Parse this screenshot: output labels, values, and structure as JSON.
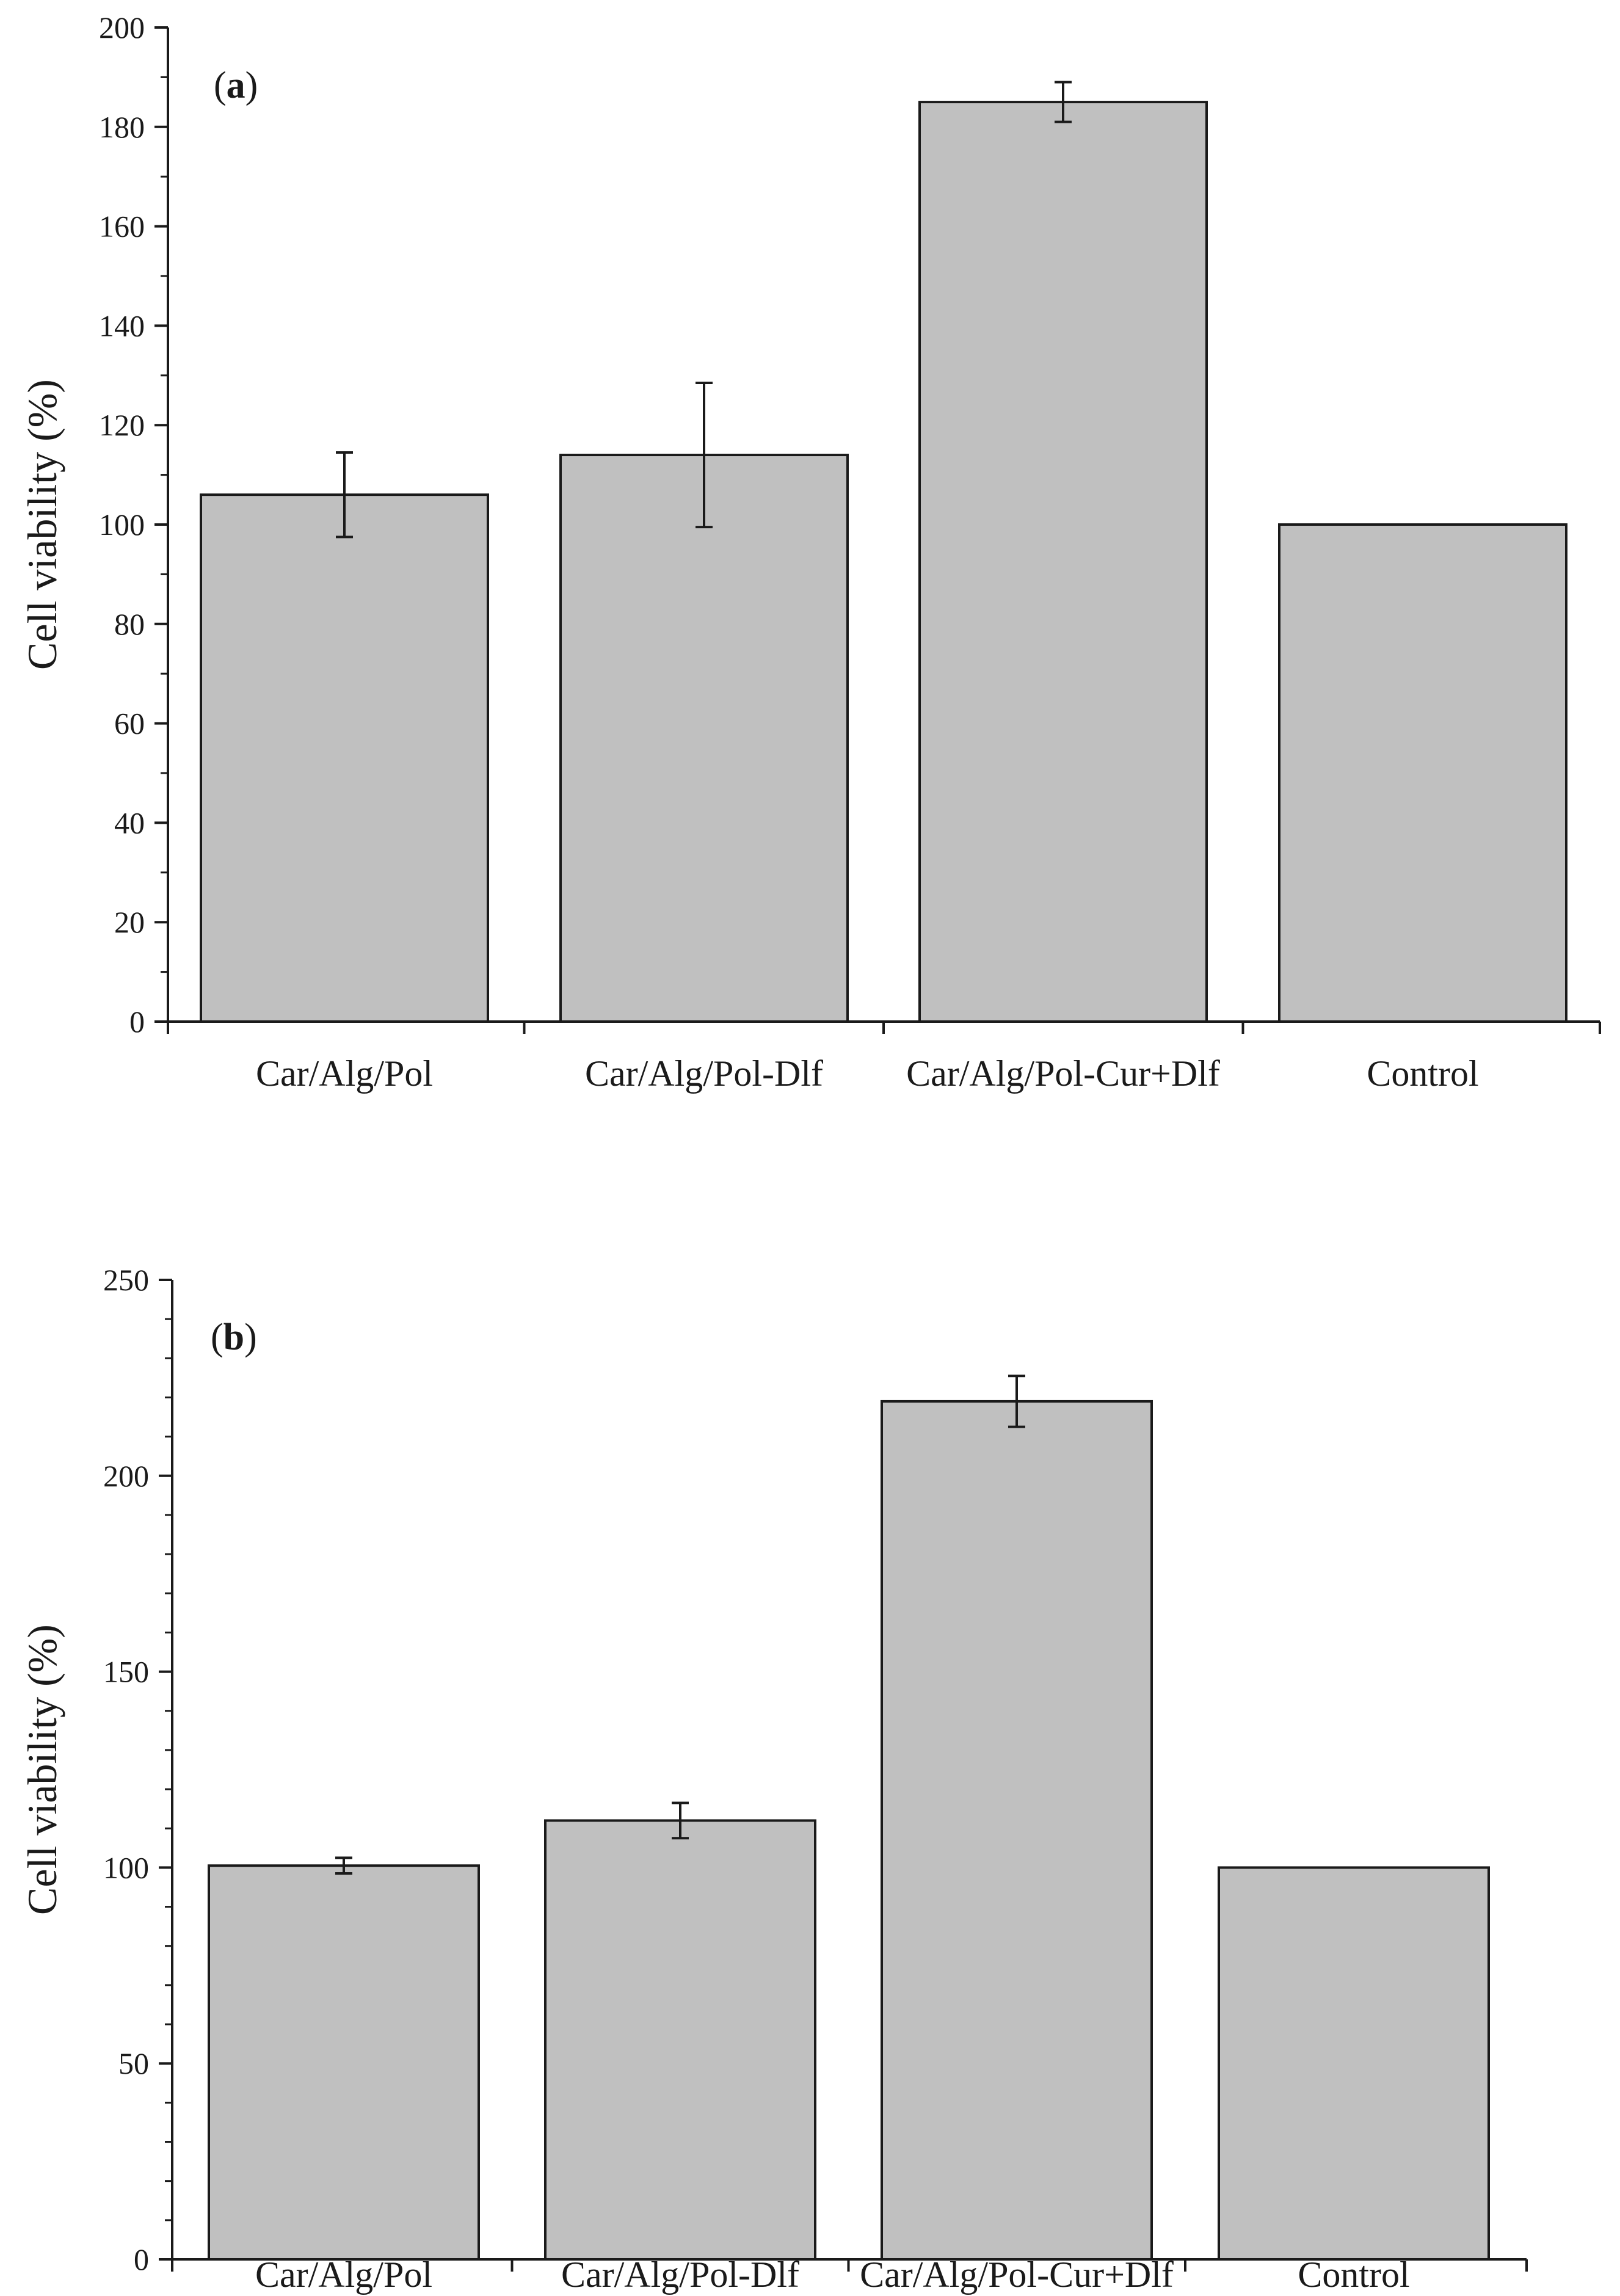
{
  "chart_data": [
    {
      "panel": "a",
      "type": "bar",
      "categories": [
        "Car/Alg/Pol",
        "Car/Alg/Pol-Dlf",
        "Car/Alg/Pol-Cur+Dlf",
        "Control"
      ],
      "values": [
        106,
        114,
        185,
        100
      ],
      "errors": [
        8.5,
        14.5,
        4,
        0
      ],
      "ylabel": "Cell viability (%)",
      "xlabel": "",
      "ylim": [
        0,
        200
      ],
      "yticks": [
        0,
        20,
        40,
        60,
        80,
        100,
        120,
        140,
        160,
        180,
        200
      ],
      "panel_label": {
        "open": "(",
        "letter": "a",
        "close": ")"
      },
      "bar_color": "#c0c0c0",
      "grid": false,
      "legend": "none"
    },
    {
      "panel": "b",
      "type": "bar",
      "categories": [
        "Car/Alg/Pol",
        "Car/Alg/Pol-Dlf",
        "Car/Alg/Pol-Cur+Dlf",
        "Control"
      ],
      "values": [
        100.5,
        112,
        219,
        100
      ],
      "errors": [
        2,
        4.5,
        6.5,
        0
      ],
      "ylabel": "Cell viability (%)",
      "xlabel": "",
      "ylim": [
        0,
        250
      ],
      "yticks": [
        0,
        50,
        100,
        150,
        200,
        250
      ],
      "panel_label": {
        "open": "(",
        "letter": "b",
        "close": ")"
      },
      "bar_color": "#c0c0c0",
      "grid": false,
      "legend": "none"
    }
  ]
}
